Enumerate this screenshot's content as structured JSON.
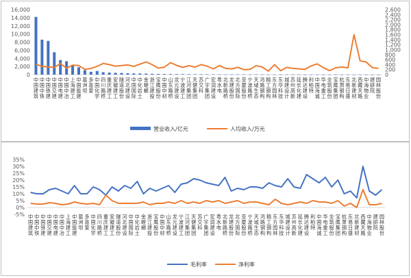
{
  "chart_data": [
    {
      "type": "bar",
      "title": "",
      "combo": "bar+line (secondary axis)",
      "categories": [
        "中国建筑",
        "中国中铁",
        "中国铁建",
        "中国交建",
        "中国电建",
        "中国中冶",
        "上海建工",
        "中国能建",
        "葛洲坝",
        "多喜爱",
        "中国化学",
        "四川路桥",
        "重庆建工",
        "安徽建工",
        "隧道股份",
        "河北建设",
        "中国国际",
        "中化岩土",
        "金螳螂",
        "浙江建投",
        "宝鹰股份",
        "中国中材",
        "山东路桥",
        "龙元建设",
        "宁波建工",
        "江河集团",
        "天健集团",
        "苏交科",
        "广宇集团",
        "宏润建设",
        "粤水电",
        "北新路桥",
        "龙建股份",
        "北方国际",
        "亚厦股份",
        "宁波路桥",
        "天域生态",
        "鸿路钢构",
        "精工钢构",
        "东方园林",
        "东华科技",
        "城建设计",
        "苏州高新",
        "延长化建",
        "腾达建设",
        "利柏特",
        "中国海诚",
        "华电重工",
        "全筑股份",
        "宝鹰集团",
        "杭萧钢构",
        "东易日盛",
        "北新建材",
        "西藏天路",
        "中海物业",
        "建研院",
        "园林股份"
      ],
      "primary_axis": {
        "ylim": [
          0,
          16000
        ],
        "ticks": [
          "0",
          "2,000",
          "4,000",
          "6,000",
          "8,000",
          "10,000",
          "12,000",
          "14,000",
          "16,000"
        ]
      },
      "secondary_axis": {
        "ylim": [
          0,
          2600
        ],
        "ticks": [
          "0",
          "200",
          "400",
          "600",
          "800",
          "1,000",
          "1,200",
          "1,400",
          "1,600",
          "1,800",
          "2,000",
          "2,200",
          "2,400",
          "2,600"
        ]
      },
      "series": [
        {
          "name": "营业收入/亿元",
          "type": "bar",
          "axis": "primary",
          "color": "#4472c4",
          "values": [
            14200,
            8600,
            8300,
            5500,
            3600,
            3300,
            2200,
            1800,
            1100,
            700,
            900,
            600,
            500,
            450,
            400,
            350,
            300,
            280,
            250,
            200,
            180,
            160,
            150,
            140,
            130,
            120,
            110,
            100,
            90,
            80,
            75,
            70,
            65,
            60,
            55,
            50,
            45,
            40,
            38,
            35,
            32,
            30,
            28,
            26,
            24,
            22,
            20,
            18,
            16,
            15,
            14,
            13,
            12,
            11,
            10,
            9,
            8
          ]
        },
        {
          "name": "人均收入/万元",
          "type": "line",
          "axis": "secondary",
          "color": "#ed7d31",
          "values": [
            420,
            330,
            310,
            290,
            440,
            260,
            380,
            360,
            210,
            250,
            330,
            450,
            400,
            340,
            360,
            390,
            330,
            420,
            510,
            400,
            260,
            300,
            480,
            370,
            290,
            360,
            300,
            400,
            340,
            230,
            360,
            250,
            230,
            290,
            200,
            210,
            360,
            300,
            140,
            400,
            160,
            290,
            250,
            230,
            210,
            350,
            430,
            280,
            160,
            270,
            310,
            270,
            1600,
            550,
            500,
            280,
            250
          ]
        }
      ]
    },
    {
      "type": "line",
      "title": "",
      "categories": [
        "中国建筑",
        "中国中铁",
        "中国铁建",
        "中国交建",
        "中国电建",
        "中国中冶",
        "上海建工",
        "中国能建",
        "葛洲坝",
        "多喜爱",
        "中国化学",
        "四川路桥",
        "重庆建工",
        "安徽建工",
        "隧道股份",
        "河北建设",
        "中国国际",
        "中化岩土",
        "金螳螂",
        "浙江建投",
        "宝鹰股份",
        "中国中材",
        "山东路桥",
        "龙元建设",
        "宁波建工",
        "江河集团",
        "天健集团",
        "苏交科",
        "广宇集团",
        "宏润建设",
        "粤水电",
        "北新路桥",
        "龙建股份",
        "北方国际",
        "亚厦股份",
        "宁波路桥",
        "天域生态",
        "鸿路钢构",
        "精工钢构",
        "东方园林",
        "东华科技",
        "城建设计",
        "苏州高新",
        "延长化建",
        "腾达建设",
        "利柏特",
        "中国海诚",
        "华电重工",
        "全筑股份",
        "宝鹰集团",
        "杭萧钢构",
        "东易日盛",
        "北新建材",
        "西藏天路",
        "中海物业",
        "建研院",
        "园林股份"
      ],
      "ylim": [
        -5,
        35
      ],
      "ticks": [
        "-5%",
        "0%",
        "5%",
        "10%",
        "15%",
        "20%",
        "25%",
        "30%",
        "35%"
      ],
      "series": [
        {
          "name": "毛利率",
          "color": "#4472c4",
          "values": [
            11,
            10,
            10,
            13,
            14,
            12,
            10,
            16,
            10,
            10,
            15,
            13,
            9,
            15,
            12,
            16,
            14,
            19,
            10,
            14,
            12,
            14,
            16,
            11,
            17,
            18,
            21,
            20,
            18,
            17,
            16,
            22,
            12,
            14,
            13,
            15,
            15,
            14,
            18,
            16,
            15,
            21,
            15,
            14,
            24,
            21,
            18,
            22,
            15,
            20,
            10,
            12,
            7,
            30,
            12,
            9,
            13
          ]
        },
        {
          "name": "净利率",
          "color": "#ed7d31",
          "values": [
            3,
            2.5,
            2.5,
            3.5,
            3,
            2,
            2.5,
            4,
            3,
            2.5,
            3,
            2,
            9,
            5,
            3,
            3,
            3,
            3,
            4,
            2,
            3,
            3,
            4,
            3,
            5,
            3,
            4,
            3,
            5,
            4,
            5,
            3,
            4,
            5,
            3,
            4,
            4,
            3,
            2,
            6,
            3,
            2,
            3,
            4,
            3,
            5,
            4,
            4,
            3,
            5,
            1,
            3,
            0,
            13,
            2,
            2,
            3
          ]
        }
      ]
    }
  ]
}
